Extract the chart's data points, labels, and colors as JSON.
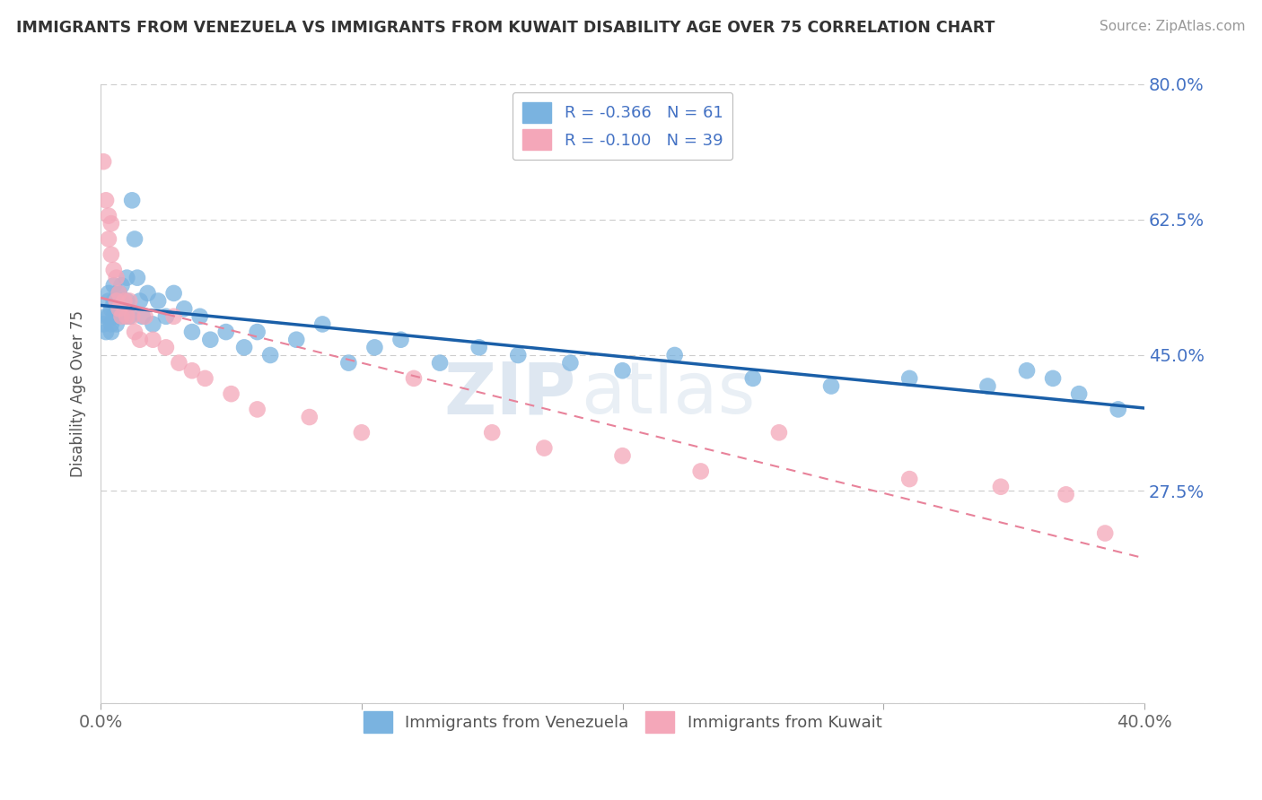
{
  "title": "IMMIGRANTS FROM VENEZUELA VS IMMIGRANTS FROM KUWAIT DISABILITY AGE OVER 75 CORRELATION CHART",
  "source": "Source: ZipAtlas.com",
  "ylabel": "Disability Age Over 75",
  "xlim": [
    0.0,
    0.4
  ],
  "ylim": [
    0.0,
    0.8
  ],
  "xticks": [
    0.0,
    0.1,
    0.2,
    0.3,
    0.4
  ],
  "xticklabels": [
    "0.0%",
    "",
    "",
    "",
    "40.0%"
  ],
  "yticks": [
    0.0,
    0.275,
    0.45,
    0.625,
    0.8
  ],
  "yticklabels": [
    "",
    "27.5%",
    "45.0%",
    "62.5%",
    "80.0%"
  ],
  "legend_r1": "R = -0.366   N = 61",
  "legend_r2": "R = -0.100   N = 39",
  "color_venezuela": "#7ab3e0",
  "color_kuwait": "#f4a7b9",
  "line_color_venezuela": "#1a5fa8",
  "line_color_kuwait": "#e8829a",
  "background_color": "#ffffff",
  "watermark_zip": "ZIP",
  "watermark_atlas": "atlas",
  "venezuela_x": [
    0.001,
    0.002,
    0.002,
    0.003,
    0.003,
    0.003,
    0.004,
    0.004,
    0.004,
    0.005,
    0.005,
    0.005,
    0.006,
    0.006,
    0.006,
    0.007,
    0.007,
    0.007,
    0.008,
    0.008,
    0.009,
    0.01,
    0.01,
    0.011,
    0.012,
    0.013,
    0.014,
    0.015,
    0.016,
    0.018,
    0.02,
    0.022,
    0.025,
    0.028,
    0.032,
    0.035,
    0.038,
    0.042,
    0.048,
    0.055,
    0.06,
    0.065,
    0.075,
    0.085,
    0.095,
    0.105,
    0.115,
    0.13,
    0.145,
    0.16,
    0.18,
    0.2,
    0.22,
    0.25,
    0.28,
    0.31,
    0.34,
    0.355,
    0.365,
    0.375,
    0.39
  ],
  "venezuela_y": [
    0.49,
    0.5,
    0.48,
    0.52,
    0.5,
    0.53,
    0.49,
    0.51,
    0.48,
    0.52,
    0.5,
    0.54,
    0.51,
    0.52,
    0.49,
    0.53,
    0.51,
    0.5,
    0.54,
    0.52,
    0.5,
    0.55,
    0.52,
    0.5,
    0.65,
    0.6,
    0.55,
    0.52,
    0.5,
    0.53,
    0.49,
    0.52,
    0.5,
    0.53,
    0.51,
    0.48,
    0.5,
    0.47,
    0.48,
    0.46,
    0.48,
    0.45,
    0.47,
    0.49,
    0.44,
    0.46,
    0.47,
    0.44,
    0.46,
    0.45,
    0.44,
    0.43,
    0.45,
    0.42,
    0.41,
    0.42,
    0.41,
    0.43,
    0.42,
    0.4,
    0.38
  ],
  "kuwait_x": [
    0.001,
    0.002,
    0.003,
    0.003,
    0.004,
    0.004,
    0.005,
    0.006,
    0.006,
    0.007,
    0.007,
    0.008,
    0.009,
    0.01,
    0.011,
    0.012,
    0.013,
    0.015,
    0.017,
    0.02,
    0.025,
    0.028,
    0.03,
    0.035,
    0.04,
    0.05,
    0.06,
    0.08,
    0.1,
    0.12,
    0.15,
    0.17,
    0.2,
    0.23,
    0.26,
    0.31,
    0.345,
    0.37,
    0.385
  ],
  "kuwait_y": [
    0.7,
    0.65,
    0.63,
    0.6,
    0.62,
    0.58,
    0.56,
    0.55,
    0.52,
    0.53,
    0.51,
    0.5,
    0.52,
    0.5,
    0.52,
    0.5,
    0.48,
    0.47,
    0.5,
    0.47,
    0.46,
    0.5,
    0.44,
    0.43,
    0.42,
    0.4,
    0.38,
    0.37,
    0.35,
    0.42,
    0.35,
    0.33,
    0.32,
    0.3,
    0.35,
    0.29,
    0.28,
    0.27,
    0.22
  ],
  "legend_bottom_v": "Immigrants from Venezuela",
  "legend_bottom_k": "Immigrants from Kuwait"
}
